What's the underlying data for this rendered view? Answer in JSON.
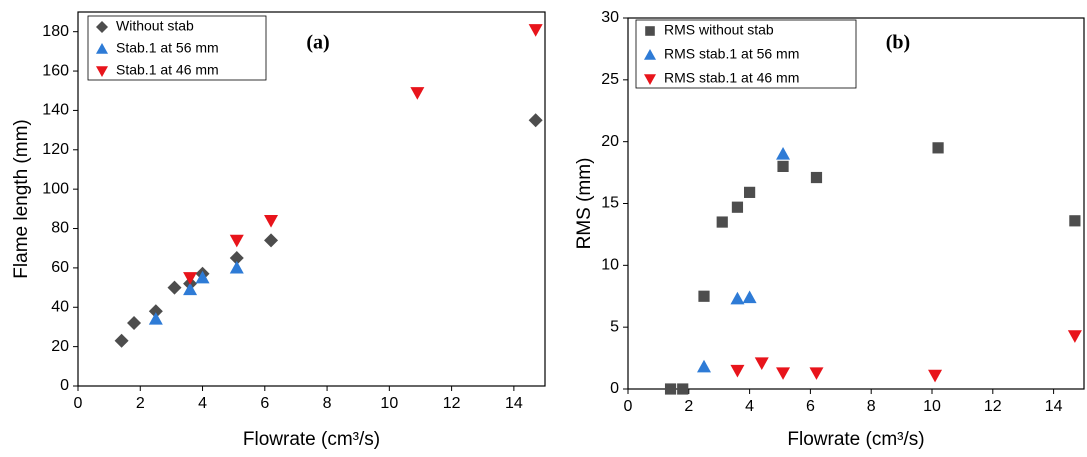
{
  "chart_data": [
    {
      "type": "scatter",
      "annotation": "(a)",
      "x_label": "Flowrate (cm³/s)",
      "y_label": "Flame length (mm)",
      "xlim": [
        0,
        15
      ],
      "xticks": [
        0,
        2,
        4,
        6,
        8,
        10,
        12,
        14
      ],
      "ylim": [
        0,
        190
      ],
      "yticks": [
        0,
        20,
        40,
        60,
        80,
        100,
        120,
        140,
        160,
        180
      ],
      "legend": "upper-left",
      "series": [
        {
          "name": "Without stab",
          "color": "#4d4d4d",
          "marker": "diamond",
          "x": [
            1.4,
            1.8,
            2.5,
            3.1,
            3.6,
            4.0,
            5.1,
            6.2,
            14.7
          ],
          "values": [
            23,
            32,
            38,
            50,
            52,
            57,
            65,
            74,
            135
          ]
        },
        {
          "name": "Stab.1 at 56 mm",
          "color": "#2e7bd6",
          "marker": "triangle-up",
          "x": [
            2.5,
            3.6,
            4.0,
            5.1
          ],
          "values": [
            34,
            49,
            55,
            60
          ]
        },
        {
          "name": "Stab.1 at 46 mm",
          "color": "#e8141b",
          "marker": "triangle-down",
          "x": [
            3.6,
            5.1,
            6.2,
            10.9,
            14.7
          ],
          "values": [
            55,
            74,
            84,
            149,
            181
          ]
        }
      ]
    },
    {
      "type": "scatter",
      "annotation": "(b)",
      "x_label": "Flowrate (cm³/s)",
      "y_label": "RMS (mm)",
      "xlim": [
        0,
        15
      ],
      "xticks": [
        0,
        2,
        4,
        6,
        8,
        10,
        12,
        14
      ],
      "ylim": [
        0,
        30
      ],
      "yticks": [
        0,
        5,
        10,
        15,
        20,
        25,
        30
      ],
      "legend": "upper-left",
      "series": [
        {
          "name": "RMS without stab",
          "color": "#4d4d4d",
          "marker": "square",
          "x": [
            1.4,
            1.8,
            2.5,
            3.1,
            3.6,
            4.0,
            5.1,
            6.2,
            10.2,
            14.7
          ],
          "values": [
            0,
            0,
            7.5,
            13.5,
            14.7,
            15.9,
            18,
            17.1,
            19.5,
            13.6
          ]
        },
        {
          "name": "RMS stab.1 at 56 mm",
          "color": "#2e7bd6",
          "marker": "triangle-up",
          "x": [
            2.5,
            3.6,
            4.0,
            5.1
          ],
          "values": [
            1.8,
            7.3,
            7.4,
            19
          ]
        },
        {
          "name": "RMS stab.1 at 46 mm",
          "color": "#e8141b",
          "marker": "triangle-down",
          "x": [
            3.6,
            4.4,
            5.1,
            6.2,
            10.1,
            14.7
          ],
          "values": [
            1.5,
            2.1,
            1.3,
            1.3,
            1.1,
            4.3
          ]
        }
      ]
    }
  ]
}
